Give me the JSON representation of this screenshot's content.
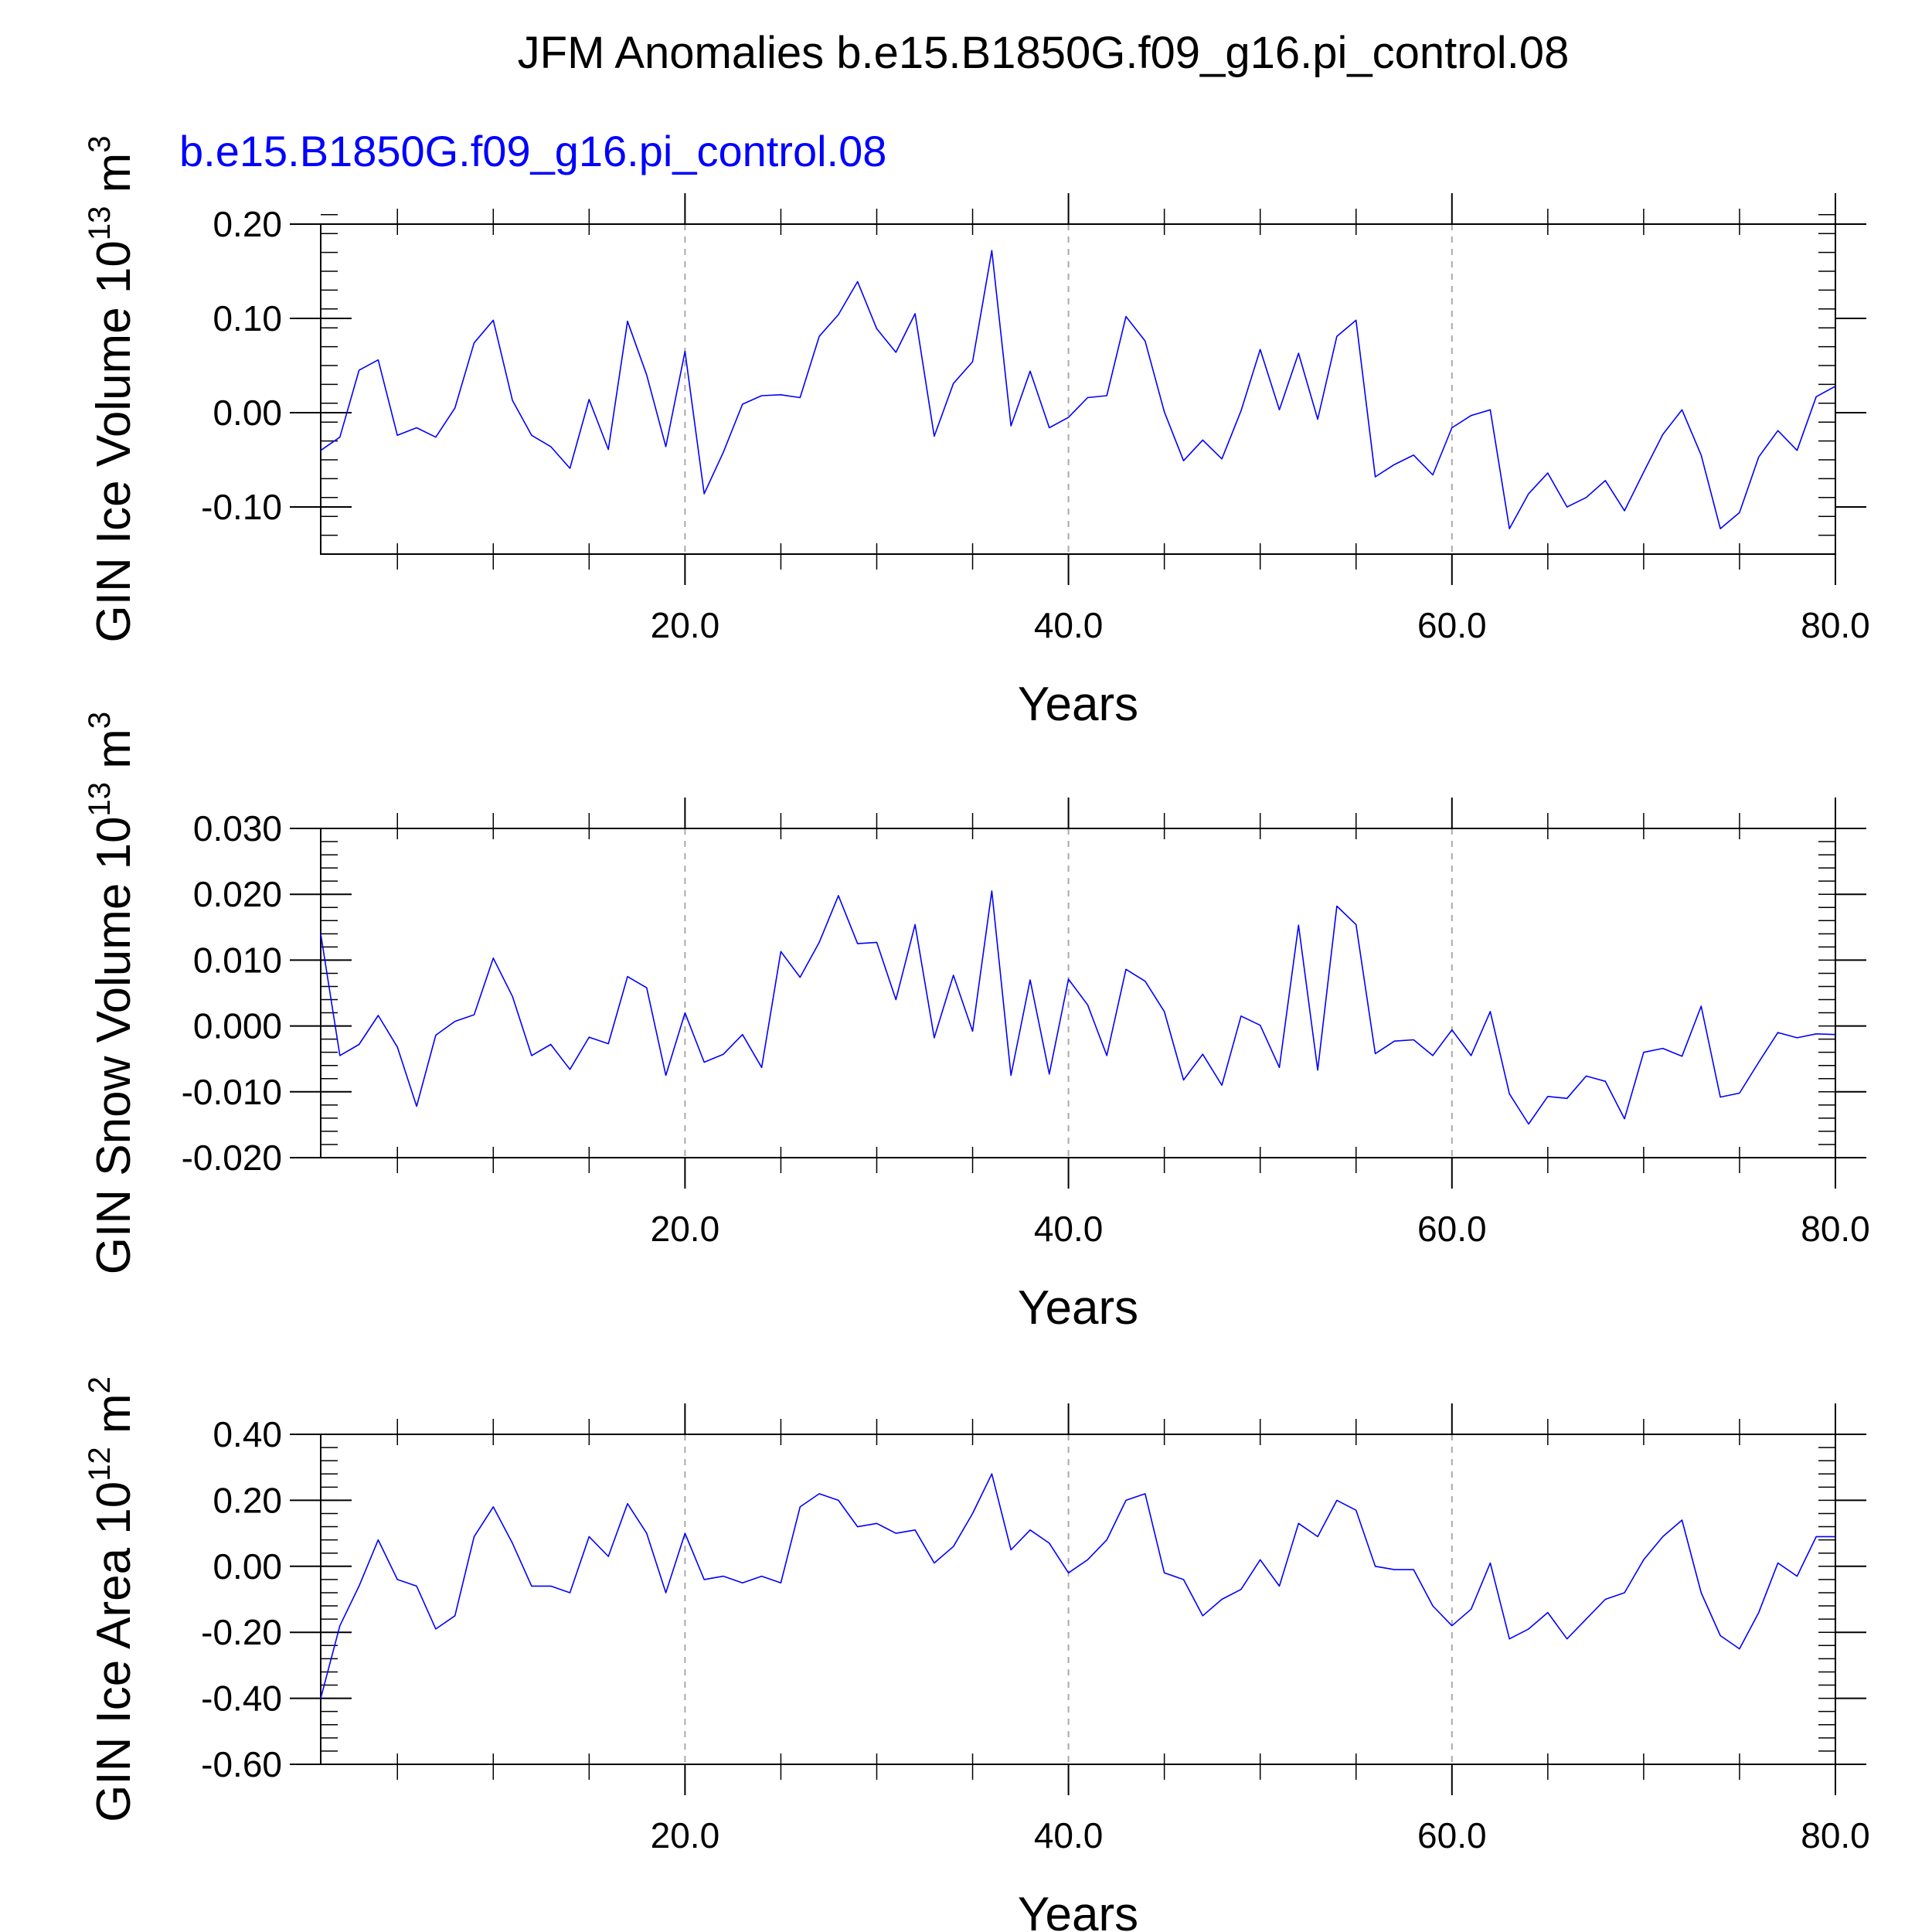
{
  "figure": {
    "title": "JFM Anomalies b.e15.B1850G.f09_g16.pi_control.08",
    "case_label": "b.e15.B1850G.f09_g16.pi_control.08",
    "colors": {
      "series": "#0000ff",
      "text": "#000000",
      "case_label": "#0000ff",
      "grid": "#aaaaaa"
    }
  },
  "chart_data": [
    {
      "type": "line",
      "ylabel": "GIN Ice Volume 10",
      "ylabel_exp": "13",
      "ylabel_unit": " m",
      "ylabel_unit_exp": "3",
      "xlabel": "Years",
      "xlim": [
        1,
        80
      ],
      "ylim": [
        -0.15,
        0.2
      ],
      "xticks": [
        20,
        40,
        60,
        80
      ],
      "xtick_labels": [
        "20.0",
        "40.0",
        "60.0",
        "80.0"
      ],
      "yticks": [
        -0.1,
        0.0,
        0.1,
        0.2
      ],
      "ytick_labels": [
        "-0.10",
        "0.00",
        "0.10",
        "0.20"
      ],
      "y_minor_step": 0.02,
      "series": [
        {
          "x": [
            1,
            2,
            3,
            4,
            5,
            6,
            7,
            8,
            9,
            10,
            11,
            12,
            13,
            14,
            15,
            16,
            17,
            18,
            19,
            20,
            21,
            22,
            23,
            24,
            25,
            26,
            27,
            28,
            29,
            30,
            31,
            32,
            33,
            34,
            35,
            36,
            37,
            38,
            39,
            40,
            41,
            42,
            43,
            44,
            45,
            46,
            47,
            48,
            49,
            50,
            51,
            52,
            53,
            54,
            55,
            56,
            57,
            58,
            59,
            60,
            61,
            62,
            63,
            64,
            65,
            66,
            67,
            68,
            69,
            70,
            71,
            72,
            73,
            74,
            75,
            76,
            77,
            78,
            79,
            80
          ],
          "values": [
            -0.04,
            -0.026,
            0.045,
            0.056,
            -0.024,
            -0.016,
            -0.026,
            0.005,
            0.074,
            0.098,
            0.013,
            -0.024,
            -0.036,
            -0.059,
            0.014,
            -0.039,
            0.097,
            0.04,
            -0.036,
            0.065,
            -0.086,
            -0.042,
            0.009,
            0.018,
            0.019,
            0.016,
            0.081,
            0.104,
            0.139,
            0.089,
            0.064,
            0.105,
            -0.025,
            0.031,
            0.054,
            0.172,
            -0.014,
            0.044,
            -0.016,
            -0.005,
            0.016,
            0.018,
            0.102,
            0.076,
            0.001,
            -0.051,
            -0.029,
            -0.049,
            0.002,
            0.067,
            0.003,
            0.063,
            -0.007,
            0.081,
            0.098,
            -0.068,
            -0.055,
            -0.045,
            -0.066,
            -0.016,
            -0.003,
            0.003,
            -0.123,
            -0.086,
            -0.064,
            -0.1,
            -0.09,
            -0.072,
            -0.104,
            -0.063,
            -0.023,
            0.003,
            -0.045,
            -0.123,
            -0.106,
            -0.047,
            -0.019,
            -0.04,
            0.017,
            0.028
          ]
        }
      ]
    },
    {
      "type": "line",
      "ylabel": "GIN Snow Volume 10",
      "ylabel_exp": "13",
      "ylabel_unit": " m",
      "ylabel_unit_exp": "3",
      "xlabel": "Years",
      "xlim": [
        1,
        80
      ],
      "ylim": [
        -0.02,
        0.03
      ],
      "xticks": [
        20,
        40,
        60,
        80
      ],
      "xtick_labels": [
        "20.0",
        "40.0",
        "60.0",
        "80.0"
      ],
      "yticks": [
        -0.02,
        -0.01,
        0.0,
        0.01,
        0.02,
        0.03
      ],
      "ytick_labels": [
        "-0.020",
        "-0.010",
        "0.000",
        "0.010",
        "0.020",
        "0.030"
      ],
      "y_minor_step": 0.002,
      "series": [
        {
          "x": [
            1,
            2,
            3,
            4,
            5,
            6,
            7,
            8,
            9,
            10,
            11,
            12,
            13,
            14,
            15,
            16,
            17,
            18,
            19,
            20,
            21,
            22,
            23,
            24,
            25,
            26,
            27,
            28,
            29,
            30,
            31,
            32,
            33,
            34,
            35,
            36,
            37,
            38,
            39,
            40,
            41,
            42,
            43,
            44,
            45,
            46,
            47,
            48,
            49,
            50,
            51,
            52,
            53,
            54,
            55,
            56,
            57,
            58,
            59,
            60,
            61,
            62,
            63,
            64,
            65,
            66,
            67,
            68,
            69,
            70,
            71,
            72,
            73,
            74,
            75,
            76,
            77,
            78,
            79,
            80
          ],
          "values": [
            0.014,
            -0.0045,
            -0.0028,
            0.0016,
            -0.0032,
            -0.0122,
            -0.0014,
            0.0007,
            0.0017,
            0.0103,
            0.0045,
            -0.0045,
            -0.0028,
            -0.0066,
            -0.0017,
            -0.0027,
            0.0075,
            0.0058,
            -0.0075,
            0.002,
            -0.0055,
            -0.0043,
            -0.0013,
            -0.0063,
            0.0113,
            0.0074,
            0.0127,
            0.0198,
            0.0125,
            0.0127,
            0.004,
            0.0154,
            -0.0018,
            0.0077,
            -0.0008,
            0.0205,
            -0.0075,
            0.007,
            -0.0073,
            0.0071,
            0.0032,
            -0.0045,
            0.0086,
            0.0068,
            0.0022,
            -0.0082,
            -0.0043,
            -0.009,
            0.0015,
            0.0001,
            -0.0063,
            0.0153,
            -0.0067,
            0.0182,
            0.0154,
            -0.0042,
            -0.0023,
            -0.0021,
            -0.0045,
            -0.0006,
            -0.0045,
            0.0022,
            -0.0103,
            -0.0149,
            -0.0107,
            -0.011,
            -0.0076,
            -0.0084,
            -0.0141,
            -0.004,
            -0.0034,
            -0.0046,
            0.003,
            -0.0108,
            -0.0102,
            -0.0055,
            -0.001,
            -0.0018,
            -0.0012,
            -0.0013
          ]
        }
      ]
    },
    {
      "type": "line",
      "ylabel": "GIN Ice Area 10",
      "ylabel_exp": "12",
      "ylabel_unit": " m",
      "ylabel_unit_exp": "2",
      "xlabel": "Years",
      "xlim": [
        1,
        80
      ],
      "ylim": [
        -0.6,
        0.4
      ],
      "xticks": [
        20,
        40,
        60,
        80
      ],
      "xtick_labels": [
        "20.0",
        "40.0",
        "60.0",
        "80.0"
      ],
      "yticks": [
        -0.6,
        -0.4,
        -0.2,
        0.0,
        0.2,
        0.4
      ],
      "ytick_labels": [
        "-0.60",
        "-0.40",
        "-0.20",
        "0.00",
        "0.20",
        "0.40"
      ],
      "y_minor_step": 0.04,
      "series": [
        {
          "x": [
            1,
            2,
            3,
            4,
            5,
            6,
            7,
            8,
            9,
            10,
            11,
            12,
            13,
            14,
            15,
            16,
            17,
            18,
            19,
            20,
            21,
            22,
            23,
            24,
            25,
            26,
            27,
            28,
            29,
            30,
            31,
            32,
            33,
            34,
            35,
            36,
            37,
            38,
            39,
            40,
            41,
            42,
            43,
            44,
            45,
            46,
            47,
            48,
            49,
            50,
            51,
            52,
            53,
            54,
            55,
            56,
            57,
            58,
            59,
            60,
            61,
            62,
            63,
            64,
            65,
            66,
            67,
            68,
            69,
            70,
            71,
            72,
            73,
            74,
            75,
            76,
            77,
            78,
            79,
            80
          ],
          "values": [
            -0.4,
            -0.18,
            -0.06,
            0.08,
            -0.04,
            -0.06,
            -0.19,
            -0.15,
            0.09,
            0.18,
            0.07,
            -0.06,
            -0.06,
            -0.08,
            0.09,
            0.03,
            0.19,
            0.1,
            -0.08,
            0.1,
            -0.04,
            -0.03,
            -0.05,
            -0.03,
            -0.05,
            0.18,
            0.22,
            0.2,
            0.12,
            0.13,
            0.1,
            0.11,
            0.01,
            0.06,
            0.16,
            0.28,
            0.05,
            0.11,
            0.07,
            -0.02,
            0.02,
            0.08,
            0.2,
            0.22,
            -0.02,
            -0.04,
            -0.15,
            -0.1,
            -0.07,
            0.02,
            -0.06,
            0.13,
            0.09,
            0.2,
            0.17,
            0.0,
            -0.01,
            -0.01,
            -0.12,
            -0.18,
            -0.13,
            0.01,
            -0.22,
            -0.19,
            -0.14,
            -0.22,
            -0.16,
            -0.1,
            -0.08,
            0.02,
            0.09,
            0.14,
            -0.08,
            -0.21,
            -0.25,
            -0.14,
            0.01,
            -0.03,
            0.09,
            0.09
          ]
        }
      ]
    }
  ]
}
